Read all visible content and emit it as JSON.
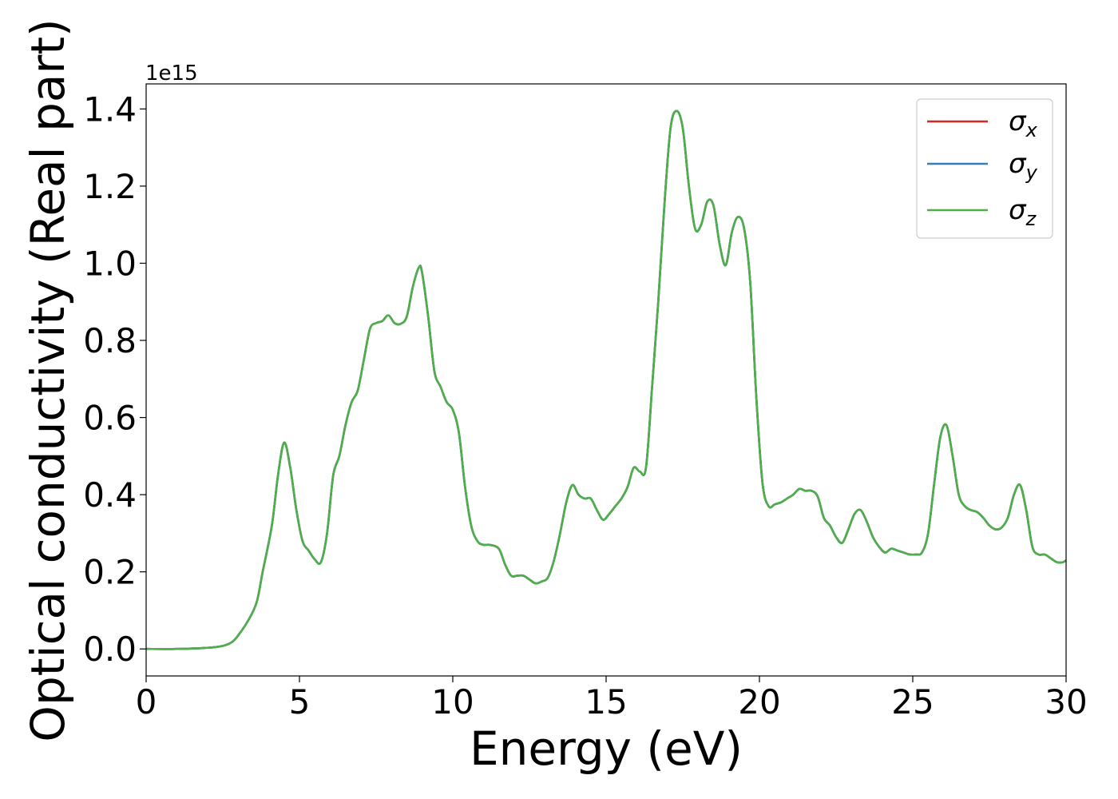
{
  "chart_data": {
    "type": "line",
    "xlabel": "Energy (eV)",
    "ylabel": "Optical conductivity (Real part)",
    "y_offset_label": "1e15",
    "xlim": [
      0,
      30
    ],
    "ylim": [
      -0.07,
      1.465
    ],
    "y_scale_factor": 1000000000000000.0,
    "x_ticks": [
      0,
      5,
      10,
      15,
      20,
      25,
      30
    ],
    "x_tick_labels": [
      "0",
      "5",
      "10",
      "15",
      "20",
      "25",
      "30"
    ],
    "y_ticks": [
      0.0,
      0.2,
      0.4,
      0.6,
      0.8,
      1.0,
      1.2,
      1.4
    ],
    "y_tick_labels": [
      "0.0",
      "0.2",
      "0.4",
      "0.6",
      "0.8",
      "1.0",
      "1.2",
      "1.4"
    ],
    "grid": false,
    "legend_position": "top-right",
    "series": [
      {
        "name": "σx",
        "symbol": "σ",
        "subscript": "x",
        "color": "#d62728"
      },
      {
        "name": "σy",
        "symbol": "σ",
        "subscript": "y",
        "color": "#377eb8"
      },
      {
        "name": "σz",
        "symbol": "σ",
        "subscript": "z",
        "color": "#4daf4a"
      }
    ],
    "x": [
      0,
      1,
      2,
      2.5,
      2.8,
      3.0,
      3.3,
      3.6,
      3.8,
      4.1,
      4.3,
      4.5,
      4.7,
      4.9,
      5.1,
      5.3,
      5.5,
      5.7,
      5.9,
      6.1,
      6.3,
      6.5,
      6.7,
      6.9,
      7.1,
      7.3,
      7.5,
      7.7,
      7.9,
      8.1,
      8.3,
      8.5,
      8.7,
      8.9,
      9.0,
      9.2,
      9.4,
      9.6,
      9.8,
      10.0,
      10.2,
      10.4,
      10.6,
      10.8,
      11.0,
      11.2,
      11.5,
      11.7,
      11.9,
      12.1,
      12.3,
      12.5,
      12.7,
      12.9,
      13.1,
      13.3,
      13.5,
      13.7,
      13.9,
      14.1,
      14.3,
      14.5,
      14.7,
      14.9,
      15.1,
      15.3,
      15.5,
      15.7,
      15.9,
      16.1,
      16.3,
      16.5,
      16.7,
      16.9,
      17.1,
      17.3,
      17.5,
      17.7,
      17.9,
      18.1,
      18.3,
      18.5,
      18.7,
      18.9,
      19.1,
      19.3,
      19.5,
      19.7,
      19.9,
      20.1,
      20.3,
      20.5,
      20.7,
      20.9,
      21.1,
      21.3,
      21.5,
      21.7,
      21.9,
      22.1,
      22.3,
      22.5,
      22.7,
      22.9,
      23.1,
      23.3,
      23.5,
      23.7,
      23.9,
      24.1,
      24.3,
      24.5,
      24.7,
      24.9,
      25.1,
      25.3,
      25.5,
      25.7,
      25.9,
      26.1,
      26.3,
      26.5,
      26.7,
      26.9,
      27.1,
      27.3,
      27.5,
      27.7,
      27.9,
      28.1,
      28.3,
      28.5,
      28.7,
      28.9,
      29.1,
      29.3,
      29.5,
      29.7,
      29.9,
      30.0
    ],
    "y": [
      0.0,
      0.0,
      0.003,
      0.008,
      0.018,
      0.035,
      0.07,
      0.12,
      0.2,
      0.32,
      0.45,
      0.535,
      0.47,
      0.36,
      0.28,
      0.255,
      0.232,
      0.225,
      0.3,
      0.45,
      0.5,
      0.58,
      0.64,
      0.67,
      0.75,
      0.83,
      0.845,
      0.85,
      0.865,
      0.845,
      0.843,
      0.862,
      0.94,
      0.99,
      0.975,
      0.86,
      0.72,
      0.68,
      0.64,
      0.62,
      0.56,
      0.42,
      0.32,
      0.28,
      0.27,
      0.27,
      0.26,
      0.22,
      0.19,
      0.19,
      0.19,
      0.18,
      0.17,
      0.175,
      0.185,
      0.23,
      0.3,
      0.38,
      0.425,
      0.4,
      0.39,
      0.39,
      0.36,
      0.335,
      0.35,
      0.37,
      0.39,
      0.42,
      0.47,
      0.46,
      0.47,
      0.68,
      0.9,
      1.15,
      1.35,
      1.395,
      1.35,
      1.2,
      1.09,
      1.1,
      1.16,
      1.15,
      1.05,
      0.995,
      1.08,
      1.12,
      1.09,
      0.95,
      0.65,
      0.43,
      0.37,
      0.375,
      0.38,
      0.39,
      0.4,
      0.415,
      0.41,
      0.41,
      0.395,
      0.34,
      0.32,
      0.29,
      0.275,
      0.31,
      0.35,
      0.36,
      0.33,
      0.29,
      0.265,
      0.25,
      0.26,
      0.255,
      0.25,
      0.245,
      0.245,
      0.25,
      0.3,
      0.43,
      0.55,
      0.58,
      0.5,
      0.4,
      0.37,
      0.36,
      0.355,
      0.34,
      0.32,
      0.31,
      0.315,
      0.34,
      0.4,
      0.425,
      0.36,
      0.265,
      0.245,
      0.245,
      0.235,
      0.225,
      0.225,
      0.23
    ]
  }
}
